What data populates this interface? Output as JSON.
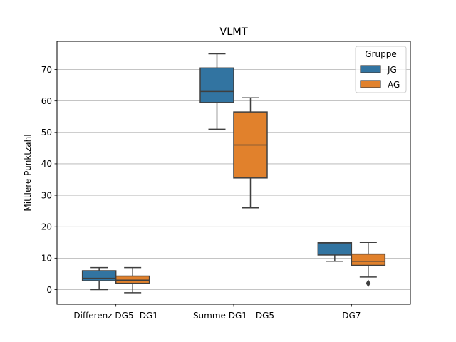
{
  "chart_data": {
    "type": "boxplot",
    "title": "VLMT",
    "xlabel": "",
    "ylabel": "Mittlere Punktzahl",
    "ylim": [
      -4.8,
      80
    ],
    "yticks": [
      0,
      10,
      20,
      30,
      40,
      50,
      60,
      70
    ],
    "grid": "horizontal",
    "legend": {
      "title": "Gruppe",
      "placement": "top-right"
    },
    "categories": [
      "Differenz DG5 -DG1",
      "Summe DG1 - DG5",
      "DG7"
    ],
    "series": [
      {
        "name": "JG",
        "color": "#3274a1",
        "boxes": [
          {
            "whislo": 0,
            "q1": 2.8,
            "med": 3.6,
            "q3": 6.0,
            "whishi": 7,
            "fliers": []
          },
          {
            "whislo": 51,
            "q1": 59.5,
            "med": 63,
            "q3": 70.5,
            "whishi": 75,
            "fliers": []
          },
          {
            "whislo": 9,
            "q1": 11,
            "med": 14.6,
            "q3": 15,
            "whishi": 15,
            "fliers": []
          }
        ]
      },
      {
        "name": "AG",
        "color": "#e1812c",
        "boxes": [
          {
            "whislo": -1,
            "q1": 2.0,
            "med": 3.0,
            "q3": 4.3,
            "whishi": 7,
            "fliers": []
          },
          {
            "whislo": 26,
            "q1": 35.5,
            "med": 46,
            "q3": 56.5,
            "whishi": 61,
            "fliers": []
          },
          {
            "whislo": 4,
            "q1": 7.7,
            "med": 9,
            "q3": 11.3,
            "whishi": 15,
            "fliers": [
              2
            ]
          }
        ]
      }
    ]
  }
}
